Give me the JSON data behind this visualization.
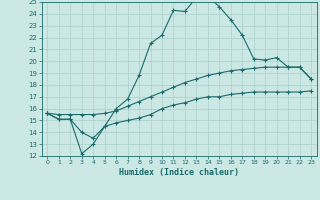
{
  "xlabel": "Humidex (Indice chaleur)",
  "xlim": [
    -0.5,
    23.5
  ],
  "ylim": [
    12,
    25
  ],
  "xticks": [
    0,
    1,
    2,
    3,
    4,
    5,
    6,
    7,
    8,
    9,
    10,
    11,
    12,
    13,
    14,
    15,
    16,
    17,
    18,
    19,
    20,
    21,
    22,
    23
  ],
  "yticks": [
    12,
    13,
    14,
    15,
    16,
    17,
    18,
    19,
    20,
    21,
    22,
    23,
    24,
    25
  ],
  "bg_color": "#cce8e4",
  "line_color": "#1a6b6b",
  "grid_color": "#aacfcb",
  "line1_x": [
    0,
    1,
    2,
    3,
    4,
    5,
    6,
    7,
    8,
    9,
    10,
    11,
    12,
    13,
    14,
    15,
    16,
    17,
    18,
    19,
    20,
    21,
    22,
    23
  ],
  "line1_y": [
    15.6,
    15.1,
    15.1,
    12.2,
    13.0,
    14.5,
    16.0,
    16.8,
    18.8,
    21.5,
    22.2,
    24.3,
    24.2,
    25.4,
    25.5,
    24.6,
    23.5,
    22.2,
    20.2,
    20.1,
    20.3,
    19.5,
    19.5,
    18.5
  ],
  "line2_x": [
    0,
    1,
    2,
    3,
    4,
    5,
    6,
    7,
    8,
    9,
    10,
    11,
    12,
    13,
    14,
    15,
    16,
    17,
    18,
    19,
    20,
    21,
    22,
    23
  ],
  "line2_y": [
    15.6,
    15.5,
    15.5,
    15.5,
    15.5,
    15.6,
    15.8,
    16.2,
    16.6,
    17.0,
    17.4,
    17.8,
    18.2,
    18.5,
    18.8,
    19.0,
    19.2,
    19.3,
    19.4,
    19.5,
    19.5,
    19.5,
    19.5,
    18.5
  ],
  "line3_x": [
    0,
    1,
    2,
    3,
    4,
    5,
    6,
    7,
    8,
    9,
    10,
    11,
    12,
    13,
    14,
    15,
    16,
    17,
    18,
    19,
    20,
    21,
    22,
    23
  ],
  "line3_y": [
    15.6,
    15.1,
    15.1,
    14.0,
    13.5,
    14.5,
    14.8,
    15.0,
    15.2,
    15.5,
    16.0,
    16.3,
    16.5,
    16.8,
    17.0,
    17.0,
    17.2,
    17.3,
    17.4,
    17.4,
    17.4,
    17.4,
    17.4,
    17.5
  ]
}
